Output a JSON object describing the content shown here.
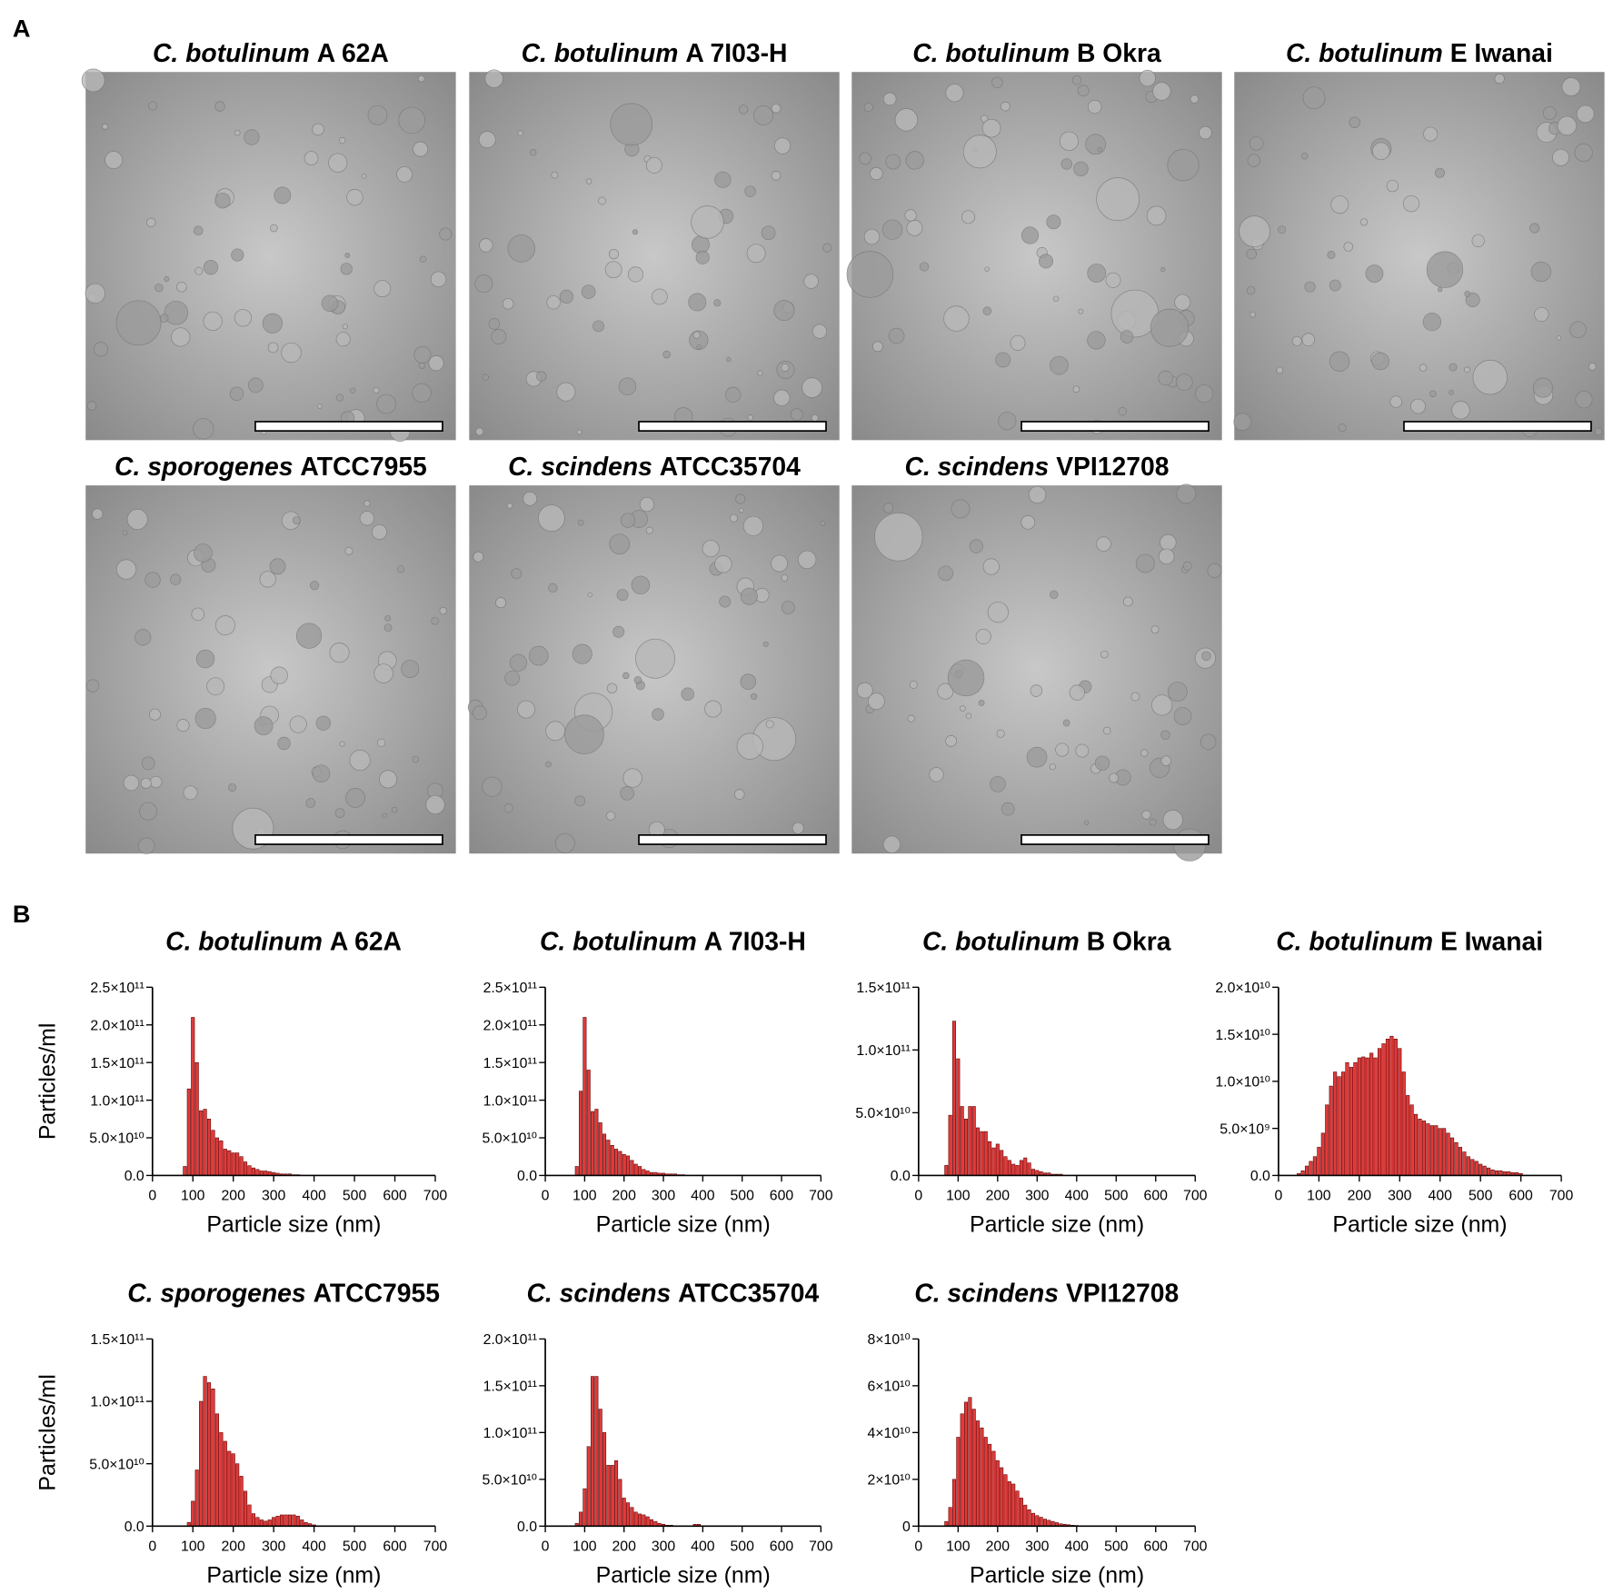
{
  "panel_labels": [
    "A",
    "B"
  ],
  "images": [
    {
      "title_species": "C. botulinum",
      "title_strain": "A 62A"
    },
    {
      "title_species": "C. botulinum",
      "title_strain": "A 7I03-H"
    },
    {
      "title_species": "C. botulinum",
      "title_strain": "B Okra"
    },
    {
      "title_species": "C. botulinum",
      "title_strain": "E Iwanai"
    },
    {
      "title_species": "C. sporogenes",
      "title_strain": "ATCC7955"
    },
    {
      "title_species": "C. scindens",
      "title_strain": "ATCC35704"
    },
    {
      "title_species": "C. scindens",
      "title_strain": "VPI12708"
    }
  ],
  "chart_data": [
    {
      "type": "histogram",
      "title_species": "C. botulinum",
      "title_strain": "A 62A",
      "ylabel": "Particles/ml",
      "xlabel": "Particle size (nm)",
      "color": "#e03a3a",
      "x": [
        80,
        90,
        100,
        110,
        120,
        130,
        140,
        150,
        160,
        170,
        180,
        190,
        200,
        210,
        220,
        230,
        240,
        250,
        260,
        270,
        280,
        290,
        300,
        310,
        320,
        330,
        340,
        350,
        360
      ],
      "values": [
        12000000000.0,
        115000000000.0,
        210000000000.0,
        150000000000.0,
        86000000000.0,
        88000000000.0,
        75000000000.0,
        60000000000.0,
        50000000000.0,
        46000000000.0,
        35000000000.0,
        33000000000.0,
        30000000000.0,
        30000000000.0,
        25000000000.0,
        18000000000.0,
        13000000000.0,
        10000000000.0,
        8000000000.0,
        6000000000.0,
        6000000000.0,
        5000000000.0,
        4000000000.0,
        3000000000.0,
        2000000000.0,
        2000000000.0,
        2000000000.0,
        1000000000.0,
        1000000000.0
      ],
      "xlim": [
        0,
        700
      ],
      "xticks": [
        0,
        100,
        200,
        300,
        400,
        500,
        600,
        700
      ],
      "ylim": [
        0,
        250000000000.0
      ],
      "yticks": [
        {
          "value": 0,
          "label": "0.0"
        },
        {
          "value": 50000000000.0,
          "label": "5.0×10¹⁰"
        },
        {
          "value": 100000000000.0,
          "label": "1.0×10¹¹"
        },
        {
          "value": 150000000000.0,
          "label": "1.5×10¹¹"
        },
        {
          "value": 200000000000.0,
          "label": "2.0×10¹¹"
        },
        {
          "value": 250000000000.0,
          "label": "2.5×10¹¹"
        }
      ]
    },
    {
      "type": "histogram",
      "title_species": "C. botulinum",
      "title_strain": "A 7I03-H",
      "xlabel": "Particle size (nm)",
      "color": "#e03a3a",
      "x": [
        80,
        90,
        100,
        110,
        120,
        130,
        140,
        150,
        160,
        170,
        180,
        190,
        200,
        210,
        220,
        230,
        240,
        250,
        260,
        270,
        280,
        290,
        300,
        310,
        320,
        330,
        340,
        350
      ],
      "values": [
        12000000000.0,
        112000000000.0,
        210000000000.0,
        140000000000.0,
        85000000000.0,
        88000000000.0,
        70000000000.0,
        55000000000.0,
        47000000000.0,
        40000000000.0,
        35000000000.0,
        32000000000.0,
        28000000000.0,
        26000000000.0,
        20000000000.0,
        15000000000.0,
        12000000000.0,
        8000000000.0,
        6000000000.0,
        4000000000.0,
        4000000000.0,
        3000000000.0,
        3000000000.0,
        2000000000.0,
        2000000000.0,
        2000000000.0,
        1000000000.0,
        1000000000.0
      ],
      "xlim": [
        0,
        700
      ],
      "xticks": [
        0,
        100,
        200,
        300,
        400,
        500,
        600,
        700
      ],
      "ylim": [
        0,
        250000000000.0
      ],
      "yticks": [
        {
          "value": 0,
          "label": "0.0"
        },
        {
          "value": 50000000000.0,
          "label": "5.0×10¹⁰"
        },
        {
          "value": 100000000000.0,
          "label": "1.0×10¹¹"
        },
        {
          "value": 150000000000.0,
          "label": "1.5×10¹¹"
        },
        {
          "value": 200000000000.0,
          "label": "2.0×10¹¹"
        },
        {
          "value": 250000000000.0,
          "label": "2.5×10¹¹"
        }
      ]
    },
    {
      "type": "histogram",
      "title_species": "C. botulinum",
      "title_strain": "B Okra",
      "xlabel": "Particle size (nm)",
      "color": "#e03a3a",
      "x": [
        70,
        80,
        90,
        100,
        110,
        120,
        130,
        140,
        150,
        160,
        170,
        180,
        190,
        200,
        210,
        220,
        230,
        240,
        250,
        260,
        270,
        280,
        290,
        300,
        310,
        320,
        330,
        340,
        350,
        360
      ],
      "values": [
        8000000000.0,
        48000000000.0,
        123000000000.0,
        93000000000.0,
        55000000000.0,
        45000000000.0,
        55000000000.0,
        55000000000.0,
        38000000000.0,
        35000000000.0,
        35000000000.0,
        27000000000.0,
        22000000000.0,
        25000000000.0,
        20000000000.0,
        15000000000.0,
        12000000000.0,
        9000000000.0,
        8000000000.0,
        12000000000.0,
        14000000000.0,
        10000000000.0,
        5000000000.0,
        4000000000.0,
        3000000000.0,
        2000000000.0,
        2000000000.0,
        1000000000.0,
        1000000000.0,
        1000000000.0
      ],
      "xlim": [
        0,
        700
      ],
      "xticks": [
        0,
        100,
        200,
        300,
        400,
        500,
        600,
        700
      ],
      "ylim": [
        0,
        150000000000.0
      ],
      "yticks": [
        {
          "value": 0,
          "label": "0.0"
        },
        {
          "value": 50000000000.0,
          "label": "5.0×10¹⁰"
        },
        {
          "value": 100000000000.0,
          "label": "1.0×10¹¹"
        },
        {
          "value": 150000000000.0,
          "label": "1.5×10¹¹"
        }
      ]
    },
    {
      "type": "histogram",
      "title_species": "C. botulinum",
      "title_strain": "E Iwanai",
      "xlabel": "Particle size (nm)",
      "color": "#e03a3a",
      "x": [
        50,
        60,
        70,
        80,
        90,
        100,
        110,
        120,
        130,
        140,
        150,
        160,
        170,
        180,
        190,
        200,
        210,
        220,
        230,
        240,
        250,
        260,
        270,
        280,
        290,
        300,
        310,
        320,
        330,
        340,
        350,
        360,
        370,
        380,
        390,
        400,
        410,
        420,
        430,
        440,
        450,
        460,
        470,
        480,
        490,
        500,
        510,
        520,
        530,
        540,
        550,
        560,
        570,
        580,
        590,
        600
      ],
      "values": [
        200000000.0,
        500000000.0,
        1000000000.0,
        1500000000.0,
        2000000000.0,
        3000000000.0,
        4500000000.0,
        7500000000.0,
        9500000000.0,
        11000000000.0,
        10500000000.0,
        11000000000.0,
        12000000000.0,
        11500000000.0,
        12000000000.0,
        12500000000.0,
        12600000000.0,
        12500000000.0,
        13000000000.0,
        12500000000.0,
        13500000000.0,
        14000000000.0,
        14500000000.0,
        14800000000.0,
        14500000000.0,
        13500000000.0,
        11000000000.0,
        8500000000.0,
        7500000000.0,
        6500000000.0,
        6000000000.0,
        5800000000.0,
        5500000000.0,
        5300000000.0,
        5300000000.0,
        5000000000.0,
        5000000000.0,
        4500000000.0,
        4000000000.0,
        3500000000.0,
        3000000000.0,
        2500000000.0,
        2000000000.0,
        1700000000.0,
        1500000000.0,
        1200000000.0,
        1000000000.0,
        800000000.0,
        600000000.0,
        500000000.0,
        500000000.0,
        400000000.0,
        400000000.0,
        300000000.0,
        300000000.0,
        200000000.0
      ],
      "xlim": [
        0,
        700
      ],
      "xticks": [
        0,
        100,
        200,
        300,
        400,
        500,
        600,
        700
      ],
      "ylim": [
        0,
        20000000000.0
      ],
      "yticks": [
        {
          "value": 0,
          "label": "0.0"
        },
        {
          "value": 5000000000.0,
          "label": "5.0×10⁹"
        },
        {
          "value": 10000000000.0,
          "label": "1.0×10¹⁰"
        },
        {
          "value": 15000000000.0,
          "label": "1.5×10¹⁰"
        },
        {
          "value": 20000000000.0,
          "label": "2.0×10¹⁰"
        }
      ]
    },
    {
      "type": "histogram",
      "title_species": "C. sporogenes",
      "title_strain": "ATCC7955",
      "ylabel": "Particles/ml",
      "xlabel": "Particle size (nm)",
      "color": "#e03a3a",
      "x": [
        90,
        100,
        110,
        120,
        130,
        140,
        150,
        160,
        170,
        180,
        190,
        200,
        210,
        220,
        230,
        240,
        250,
        260,
        270,
        280,
        290,
        300,
        310,
        320,
        330,
        340,
        350,
        360,
        370,
        380,
        390,
        400
      ],
      "values": [
        3000000000.0,
        20000000000.0,
        45000000000.0,
        100000000000.0,
        120000000000.0,
        115000000000.0,
        110000000000.0,
        90000000000.0,
        75000000000.0,
        68000000000.0,
        60000000000.0,
        58000000000.0,
        50000000000.0,
        40000000000.0,
        28000000000.0,
        17000000000.0,
        10000000000.0,
        7000000000.0,
        5000000000.0,
        4000000000.0,
        5000000000.0,
        7000000000.0,
        8000000000.0,
        9000000000.0,
        9000000000.0,
        9000000000.0,
        9000000000.0,
        8000000000.0,
        5000000000.0,
        3000000000.0,
        2000000000.0,
        1000000000.0
      ],
      "xlim": [
        0,
        700
      ],
      "xticks": [
        0,
        100,
        200,
        300,
        400,
        500,
        600,
        700
      ],
      "ylim": [
        0,
        150000000000.0
      ],
      "yticks": [
        {
          "value": 0,
          "label": "0.0"
        },
        {
          "value": 50000000000.0,
          "label": "5.0×10¹⁰"
        },
        {
          "value": 100000000000.0,
          "label": "1.0×10¹¹"
        },
        {
          "value": 150000000000.0,
          "label": "1.5×10¹¹"
        }
      ]
    },
    {
      "type": "histogram",
      "title_species": "C. scindens",
      "title_strain": "ATCC35704",
      "xlabel": "Particle size (nm)",
      "color": "#e03a3a",
      "x": [
        80,
        90,
        100,
        110,
        120,
        130,
        140,
        150,
        160,
        170,
        180,
        190,
        200,
        210,
        220,
        230,
        240,
        250,
        260,
        270,
        280,
        290,
        300,
        310,
        320,
        380,
        390
      ],
      "values": [
        3000000000.0,
        15000000000.0,
        40000000000.0,
        85000000000.0,
        160000000000.0,
        160000000000.0,
        125000000000.0,
        100000000000.0,
        65000000000.0,
        65000000000.0,
        70000000000.0,
        50000000000.0,
        30000000000.0,
        25000000000.0,
        20000000000.0,
        15000000000.0,
        13000000000.0,
        12000000000.0,
        10000000000.0,
        7000000000.0,
        5000000000.0,
        3000000000.0,
        2000000000.0,
        1000000000.0,
        1000000000.0,
        2000000000.0,
        2000000000.0
      ],
      "xlim": [
        0,
        700
      ],
      "xticks": [
        0,
        100,
        200,
        300,
        400,
        500,
        600,
        700
      ],
      "ylim": [
        0,
        200000000000.0
      ],
      "yticks": [
        {
          "value": 0,
          "label": "0.0"
        },
        {
          "value": 50000000000.0,
          "label": "5.0×10¹⁰"
        },
        {
          "value": 100000000000.0,
          "label": "1.0×10¹¹"
        },
        {
          "value": 150000000000.0,
          "label": "1.5×10¹¹"
        },
        {
          "value": 200000000000.0,
          "label": "2.0×10¹¹"
        }
      ]
    },
    {
      "type": "histogram",
      "title_species": "C. scindens",
      "title_strain": "VPI12708",
      "xlabel": "Particle size (nm)",
      "color": "#e03a3a",
      "x": [
        70,
        80,
        90,
        100,
        110,
        120,
        130,
        140,
        150,
        160,
        170,
        180,
        190,
        200,
        210,
        220,
        230,
        240,
        250,
        260,
        270,
        280,
        290,
        300,
        310,
        320,
        330,
        340,
        350,
        360,
        370,
        380,
        390,
        400
      ],
      "values": [
        2000000000.0,
        8000000000.0,
        20000000000.0,
        38000000000.0,
        48000000000.0,
        53000000000.0,
        55000000000.0,
        50000000000.0,
        45000000000.0,
        42000000000.0,
        38000000000.0,
        35000000000.0,
        32000000000.0,
        28000000000.0,
        25000000000.0,
        22000000000.0,
        19000000000.0,
        18000000000.0,
        15000000000.0,
        12000000000.0,
        9000000000.0,
        7000000000.0,
        5500000000.0,
        4500000000.0,
        3800000000.0,
        3000000000.0,
        2500000000.0,
        2000000000.0,
        1500000000.0,
        1000000000.0,
        800000000.0,
        600000000.0,
        400000000.0,
        300000000.0
      ],
      "xlim": [
        0,
        700
      ],
      "xticks": [
        0,
        100,
        200,
        300,
        400,
        500,
        600,
        700
      ],
      "ylim": [
        0,
        80000000000.0
      ],
      "yticks": [
        0,
        {
          "value": 20000000000.0,
          "label": "2×10¹⁰"
        },
        {
          "value": 40000000000.0,
          "label": "4×10¹⁰"
        },
        {
          "value": 60000000000.0,
          "label": "6×10¹⁰"
        },
        {
          "value": 80000000000.0,
          "label": "8×10¹⁰"
        }
      ]
    }
  ]
}
